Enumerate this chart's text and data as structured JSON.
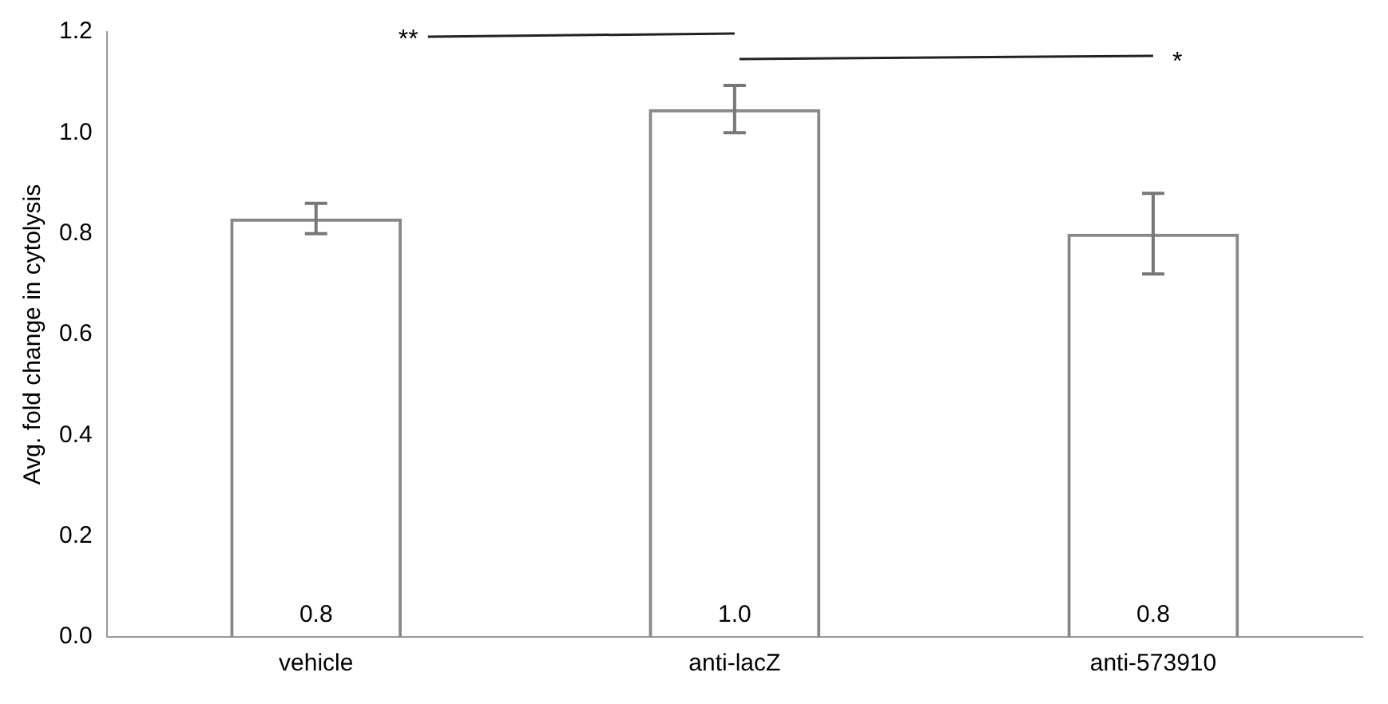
{
  "chart_data": {
    "type": "bar",
    "ylabel": "Avg. fold change in cytolysis",
    "categories": [
      "vehicle",
      "anti-lacZ",
      "anti-573910"
    ],
    "values": [
      0.83,
      1.047,
      0.8
    ],
    "errors": [
      0.03,
      0.047,
      0.08
    ],
    "value_labels": [
      "0.8",
      "1.0",
      "0.8"
    ],
    "color": "#888888",
    "ylim": [
      0,
      1.2
    ],
    "yticks": [
      {
        "value": 0,
        "label": "0.0"
      },
      {
        "value": 0.2,
        "label": "0.2"
      },
      {
        "value": 0.4,
        "label": "0.4"
      },
      {
        "value": 0.6,
        "label": "0.6"
      },
      {
        "value": 0.8,
        "label": "0.8"
      },
      {
        "value": 1,
        "label": "1.0"
      },
      {
        "value": 1.2,
        "label": "1.2"
      }
    ],
    "grid": false,
    "legend": false,
    "annotations": [
      "**",
      "*"
    ]
  }
}
